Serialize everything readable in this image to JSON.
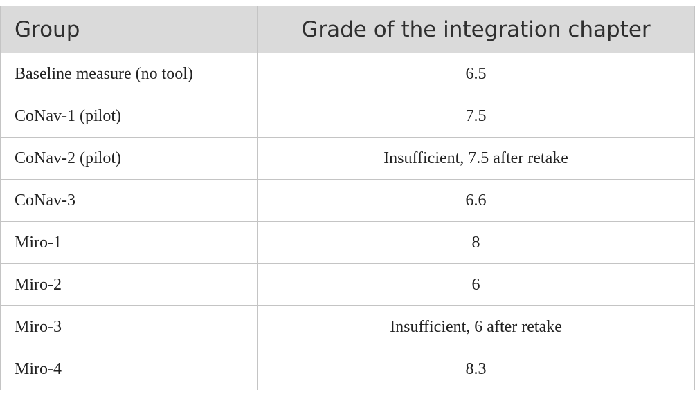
{
  "table": {
    "header": [
      "Group",
      "Grade of the integration chapter"
    ],
    "rows": [
      [
        "Baseline measure (no tool)",
        "6.5"
      ],
      [
        "CoNav-1 (pilot)",
        "7.5"
      ],
      [
        "CoNav-2 (pilot)",
        "Insufficient, 7.5 after retake"
      ],
      [
        "CoNav-3",
        "6.6"
      ],
      [
        "Miro-1",
        "8"
      ],
      [
        "Miro-2",
        "6"
      ],
      [
        "Miro-3",
        "Insufficient, 6 after retake"
      ],
      [
        "Miro-4",
        "8.3"
      ]
    ]
  }
}
